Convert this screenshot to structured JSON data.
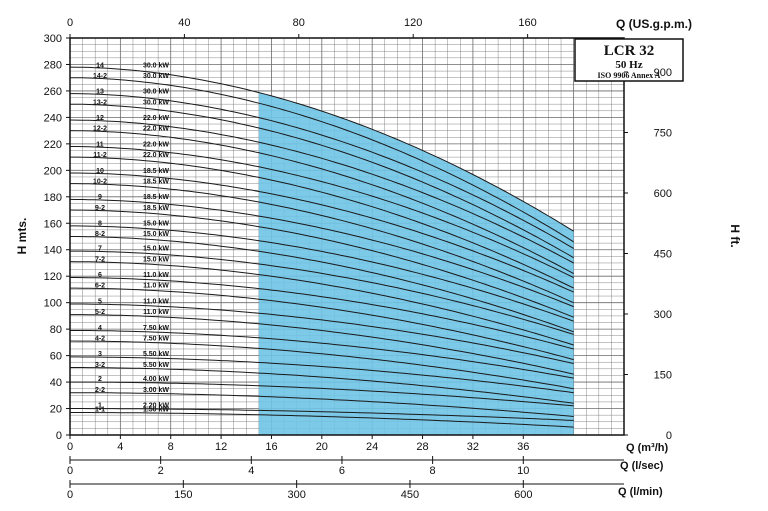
{
  "chart_data": {
    "type": "line",
    "title": "LCR 32",
    "frequency": "50 Hz",
    "standard": "ISO 9906 Annex A",
    "ylabel_left": "H mts.",
    "ylabel_right": "H ft.",
    "x_axes": [
      {
        "label": "Q (m³/h)",
        "position": "bottom",
        "range": [
          0,
          44
        ],
        "ticks": [
          "0",
          "4",
          "8",
          "12",
          "16",
          "20",
          "24",
          "28",
          "32",
          "36"
        ]
      },
      {
        "label": "Q (l/sec)",
        "position": "bottom-2",
        "range": [
          0,
          12.222
        ],
        "ticks": [
          "0",
          "2",
          "4",
          "6",
          "8",
          "10"
        ]
      },
      {
        "label": "Q (l/min)",
        "position": "bottom-3",
        "range": [
          0,
          733.3
        ],
        "ticks": [
          "0",
          "150",
          "300",
          "450",
          "600"
        ]
      },
      {
        "label": "Q (US.g.p.m.)",
        "position": "top",
        "range": [
          0,
          193.7
        ],
        "ticks": [
          "0",
          "40",
          "80",
          "120",
          "160"
        ]
      }
    ],
    "y_axes": [
      {
        "label": "H mts.",
        "position": "left",
        "range": [
          0,
          300
        ],
        "ticks": [
          "0",
          "20",
          "40",
          "60",
          "80",
          "100",
          "120",
          "140",
          "160",
          "180",
          "200",
          "220",
          "240",
          "260",
          "280",
          "300"
        ]
      },
      {
        "label": "H ft.",
        "position": "right",
        "range": [
          0,
          984.3
        ],
        "ticks": [
          "0",
          "150",
          "300",
          "450",
          "600",
          "750",
          "900"
        ]
      }
    ],
    "recommended_range_m3h": [
      15,
      40
    ],
    "grid": true,
    "series": [
      {
        "name": "14",
        "power": "30.0 kW",
        "shutoff": 278,
        "end": 154
      },
      {
        "name": "14-2",
        "power": "30.0 kW",
        "shutoff": 270,
        "end": 146
      },
      {
        "name": "13",
        "power": "30.0 kW",
        "shutoff": 258,
        "end": 141
      },
      {
        "name": "13-2",
        "power": "30.0 kW",
        "shutoff": 250,
        "end": 134
      },
      {
        "name": "12",
        "power": "22.0 kW",
        "shutoff": 238,
        "end": 130
      },
      {
        "name": "12-2",
        "power": "22.0 kW",
        "shutoff": 230,
        "end": 122
      },
      {
        "name": "11",
        "power": "22.0 kW",
        "shutoff": 218,
        "end": 119
      },
      {
        "name": "11-2",
        "power": "22.0 kW",
        "shutoff": 210,
        "end": 111
      },
      {
        "name": "10",
        "power": "18.5 kW",
        "shutoff": 198,
        "end": 108
      },
      {
        "name": "10-2",
        "power": "18.5 kW",
        "shutoff": 190,
        "end": 100
      },
      {
        "name": "9",
        "power": "18.5 kW",
        "shutoff": 178,
        "end": 97
      },
      {
        "name": "9-2",
        "power": "18.5 kW",
        "shutoff": 170,
        "end": 89
      },
      {
        "name": "8",
        "power": "15.0 kW",
        "shutoff": 158,
        "end": 86
      },
      {
        "name": "8-2",
        "power": "15.0 kW",
        "shutoff": 150,
        "end": 78
      },
      {
        "name": "7",
        "power": "15.0 kW",
        "shutoff": 139,
        "end": 76
      },
      {
        "name": "7-2",
        "power": "15.0 kW",
        "shutoff": 131,
        "end": 68
      },
      {
        "name": "6",
        "power": "11.0 kW",
        "shutoff": 119,
        "end": 65
      },
      {
        "name": "6-2",
        "power": "11.0 kW",
        "shutoff": 111,
        "end": 57
      },
      {
        "name": "5",
        "power": "11.0 kW",
        "shutoff": 99,
        "end": 54
      },
      {
        "name": "5-2",
        "power": "11.0 kW",
        "shutoff": 91,
        "end": 46
      },
      {
        "name": "4",
        "power": "7.50 kW",
        "shutoff": 79,
        "end": 43
      },
      {
        "name": "4-2",
        "power": "7.50 kW",
        "shutoff": 71,
        "end": 35
      },
      {
        "name": "3",
        "power": "5.50 kW",
        "shutoff": 59,
        "end": 32
      },
      {
        "name": "3-2",
        "power": "5.50 kW",
        "shutoff": 51,
        "end": 24
      },
      {
        "name": "2",
        "power": "4.00 kW",
        "shutoff": 40,
        "end": 22
      },
      {
        "name": "2-2",
        "power": "3.00 kW",
        "shutoff": 32,
        "end": 14
      },
      {
        "name": "1",
        "power": "2.20 kW",
        "shutoff": 20,
        "end": 11
      },
      {
        "name": "1-1",
        "power": "1.50 kW",
        "shutoff": 17,
        "end": 6
      }
    ]
  },
  "colors": {
    "background": "#ffffff",
    "axis": "#111111",
    "grid": "#6a6a6a",
    "curve": "#1a1a1a",
    "shaded_region": "#6ec3e6"
  }
}
